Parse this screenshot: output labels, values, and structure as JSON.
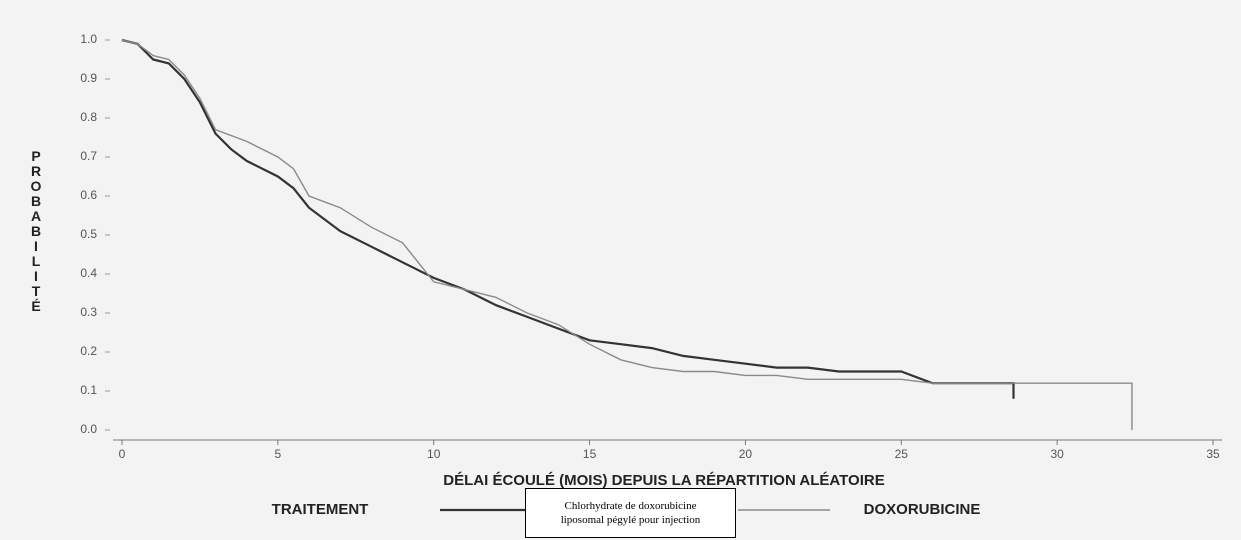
{
  "chart_data": {
    "type": "line",
    "step": false,
    "xlabel": "DÉLAI ÉCOULÉ (MOIS) DEPUIS LA RÉPARTITION ALÉATOIRE",
    "ylabel": "PROBABILITÉ",
    "legend_title": "TRAITEMENT",
    "xlim": [
      0,
      35
    ],
    "xticks": [
      0,
      5,
      10,
      15,
      20,
      25,
      30,
      35
    ],
    "ylim": [
      0,
      1
    ],
    "yticks": [
      {
        "value": 0,
        "label": "0.0"
      },
      0.1,
      0.2,
      0.3,
      0.4,
      0.5,
      0.6,
      0.7,
      0.8,
      0.9,
      {
        "value": 1,
        "label": "1.0"
      }
    ],
    "series": [
      {
        "name": "Chlorhydrate de doxorubicine liposomal pégylé pour injection",
        "color": "#333333",
        "x": [
          0,
          0.5,
          1,
          1.5,
          2,
          2.5,
          3,
          3.5,
          4,
          5,
          5.5,
          6,
          7,
          8,
          9,
          10,
          11,
          12,
          13,
          14,
          15,
          16,
          17,
          18,
          19,
          20,
          21,
          22,
          23,
          24,
          25,
          26,
          27,
          28,
          28.6,
          28.6
        ],
        "values": [
          1.0,
          0.99,
          0.95,
          0.94,
          0.9,
          0.84,
          0.76,
          0.72,
          0.69,
          0.65,
          0.62,
          0.57,
          0.51,
          0.47,
          0.43,
          0.39,
          0.36,
          0.32,
          0.29,
          0.26,
          0.23,
          0.22,
          0.21,
          0.19,
          0.18,
          0.17,
          0.16,
          0.16,
          0.15,
          0.15,
          0.15,
          0.12,
          0.12,
          0.12,
          0.12,
          0.08
        ]
      },
      {
        "name": "DOXORUBICINE",
        "color": "#8a8a8a",
        "x": [
          0,
          0.5,
          1,
          1.5,
          2,
          2.5,
          3,
          4,
          5,
          5.5,
          6,
          7,
          8,
          9,
          10,
          11,
          12,
          13,
          14,
          15,
          16,
          17,
          18,
          19,
          20,
          21,
          22,
          25,
          26,
          28,
          32.4,
          32.4
        ],
        "values": [
          1.0,
          0.99,
          0.96,
          0.95,
          0.91,
          0.85,
          0.77,
          0.74,
          0.7,
          0.67,
          0.6,
          0.57,
          0.52,
          0.48,
          0.38,
          0.36,
          0.34,
          0.3,
          0.27,
          0.22,
          0.18,
          0.16,
          0.15,
          0.15,
          0.14,
          0.14,
          0.13,
          0.13,
          0.12,
          0.12,
          0.12,
          0.0
        ]
      }
    ]
  }
}
